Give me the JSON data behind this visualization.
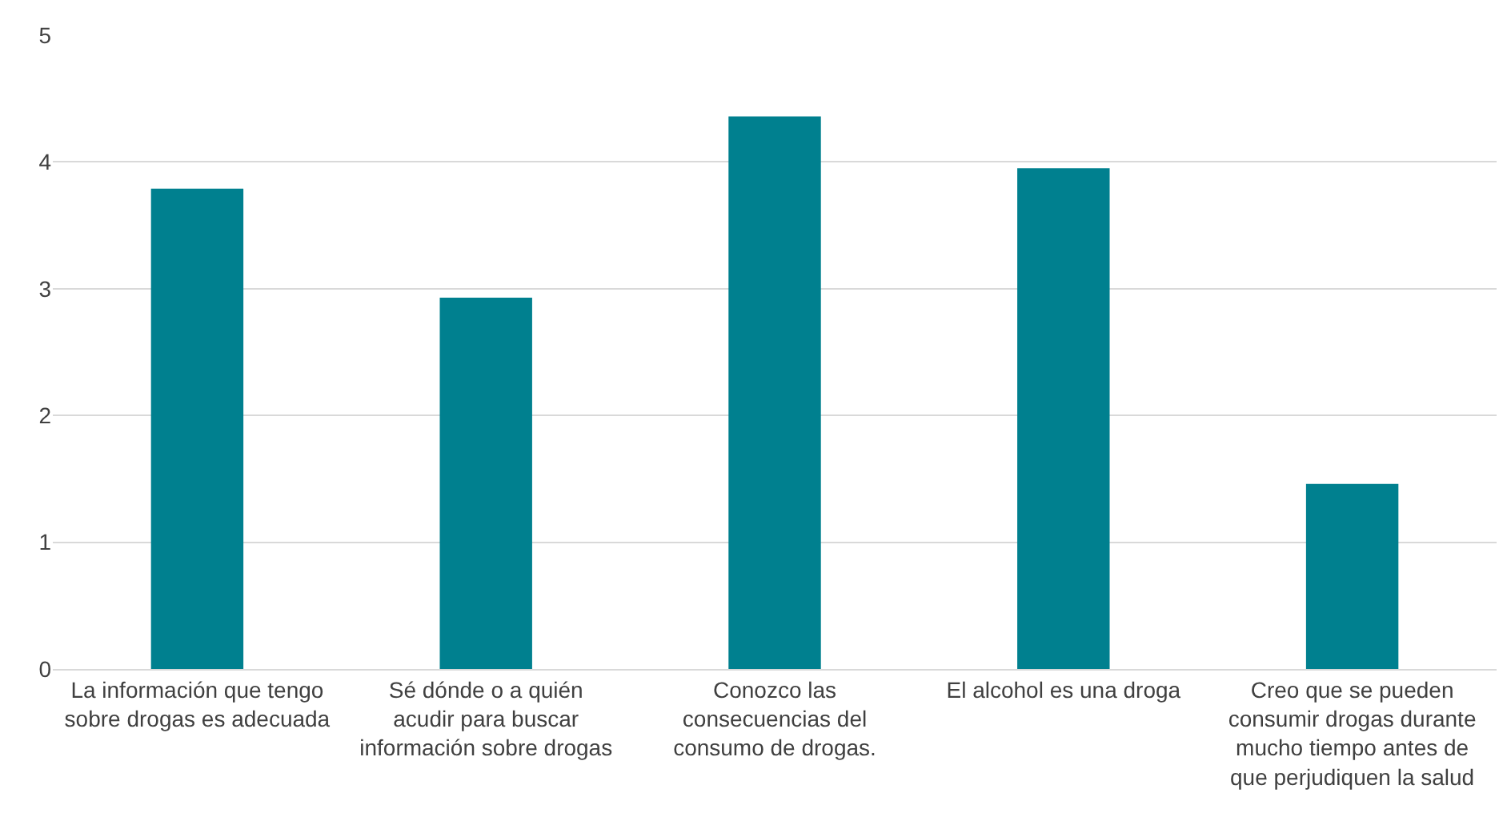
{
  "chart_data": {
    "type": "bar",
    "categories": [
      "La información que tengo sobre drogas es adecuada",
      "Sé dónde o a quién acudir para buscar información sobre drogas",
      "Conozco las consecuencias del consumo de drogas.",
      "El alcohol es una droga",
      "Creo que se pueden consumir drogas durante mucho tiempo antes de que perjudiquen la salud"
    ],
    "values": [
      3.79,
      2.93,
      4.36,
      3.95,
      1.46
    ],
    "color": "#00808f",
    "ylim": [
      0,
      5
    ],
    "yticks": [
      0,
      1,
      2,
      3,
      4,
      5
    ],
    "grid": "y",
    "legend": false
  }
}
